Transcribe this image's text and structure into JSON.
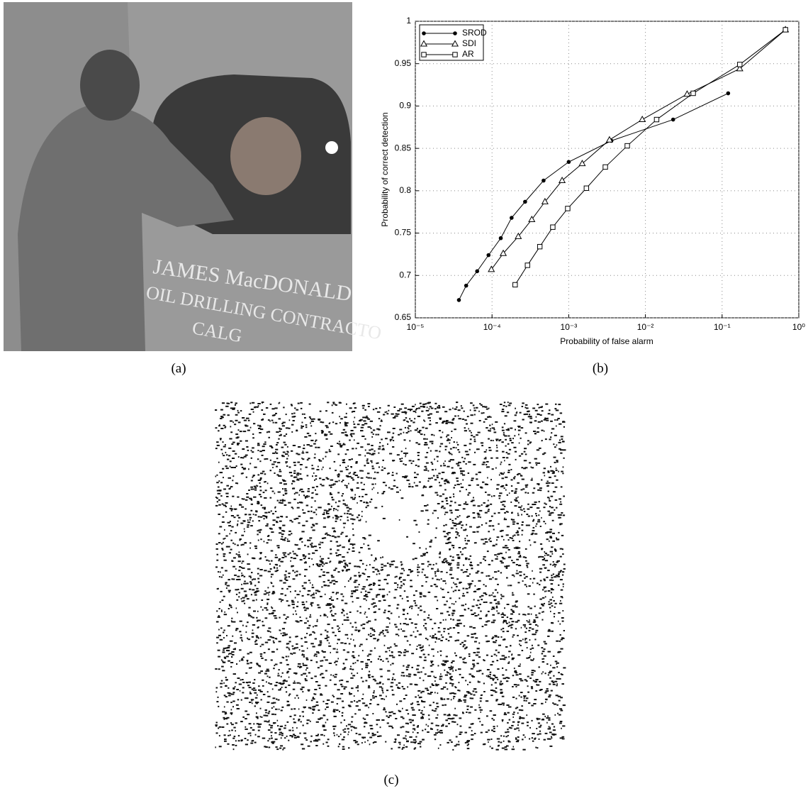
{
  "photo": {
    "lettering": [
      "JAMES MacDONALD",
      "OIL DRILLING CONTRACTO",
      "CALG"
    ]
  },
  "chart_data": {
    "type": "line",
    "xlabel": "Probability of false alarm",
    "ylabel": "Probability of correct detection",
    "xscale": "log",
    "grid": true,
    "legend": "upper left",
    "xlim": [
      1e-05,
      1
    ],
    "xticks": [
      {
        "value": 1e-05,
        "label": "10⁻⁵"
      },
      {
        "value": 0.0001,
        "label": "10⁻⁴"
      },
      {
        "value": 0.001,
        "label": "10⁻³"
      },
      {
        "value": 0.01,
        "label": "10⁻²"
      },
      {
        "value": 0.1,
        "label": "10⁻¹"
      },
      {
        "value": 1,
        "label": "10⁰"
      }
    ],
    "ylim": [
      0.65,
      1
    ],
    "yticks": [
      0.65,
      0.7,
      0.75,
      0.8,
      0.85,
      0.9,
      0.95,
      1
    ],
    "series": [
      {
        "name": "SROD",
        "color": "#000000",
        "marker": "circle",
        "x": [
          3.7e-05,
          4.6e-05,
          6.4e-05,
          9e-05,
          0.00013,
          0.00018,
          0.00027,
          0.00047,
          0.001,
          0.0036,
          0.023,
          0.12
        ],
        "values": [
          0.671,
          0.688,
          0.705,
          0.724,
          0.744,
          0.768,
          0.787,
          0.812,
          0.834,
          0.859,
          0.884,
          0.915
        ]
      },
      {
        "name": "SDI",
        "color": "#000000",
        "marker": "triangle",
        "x": [
          9.8e-05,
          0.00014,
          0.00022,
          0.00033,
          0.00049,
          0.00082,
          0.0015,
          0.0034,
          0.0091,
          0.035,
          0.17,
          0.67
        ],
        "values": [
          0.707,
          0.726,
          0.746,
          0.766,
          0.787,
          0.812,
          0.832,
          0.86,
          0.884,
          0.914,
          0.944,
          0.99
        ]
      },
      {
        "name": "AR",
        "color": "#000000",
        "marker": "square",
        "x": [
          0.0002,
          0.00029,
          0.00042,
          0.00062,
          0.00097,
          0.0017,
          0.003,
          0.0058,
          0.014,
          0.042,
          0.17,
          0.67
        ],
        "values": [
          0.689,
          0.712,
          0.734,
          0.757,
          0.779,
          0.803,
          0.828,
          0.853,
          0.884,
          0.915,
          0.949,
          0.99
        ]
      }
    ]
  },
  "captions": [
    "(a)",
    "(b)",
    "(c)"
  ]
}
